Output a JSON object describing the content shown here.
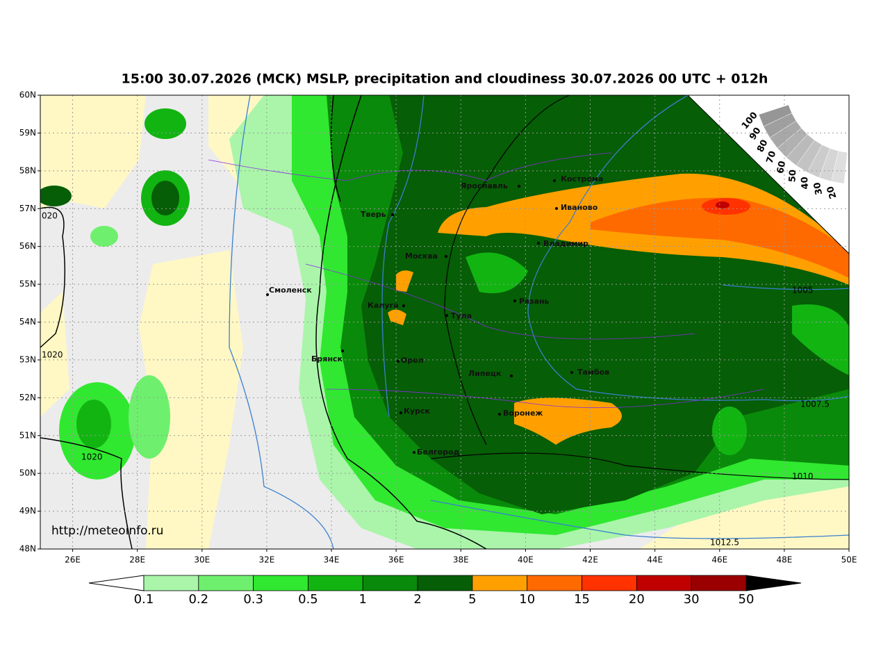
{
  "header": {
    "title": "15:00 30.07.2026 (МСК) MSLP, precipitation and cloudiness 30.07.2026 00 UTC + 012h"
  },
  "map": {
    "lat_labels": [
      "60N",
      "59N",
      "58N",
      "57N",
      "56N",
      "55N",
      "54N",
      "53N",
      "52N",
      "51N",
      "50N",
      "49N",
      "48N"
    ],
    "lon_labels": [
      "26E",
      "28E",
      "30E",
      "32E",
      "34E",
      "36E",
      "38E",
      "40E",
      "42E",
      "44E",
      "46E",
      "48E",
      "50E"
    ],
    "cities": [
      "Кострома",
      "Ярославль",
      "Иваново",
      "Тверь",
      "Владимир",
      "Москва",
      "Смоленск",
      "Рязань",
      "Калуга",
      "Тула",
      "Брянск",
      "Орел",
      "Липецк",
      "Тамбов",
      "Курск",
      "Воронеж",
      "Белгород"
    ],
    "isobar_labels": [
      "020",
      "1020",
      "1020",
      "1005",
      "1007.5",
      "1010",
      "1012.5"
    ],
    "watermark": "http://meteoinfo.ru"
  },
  "cloud_scale": {
    "labels": [
      "100",
      "90",
      "80",
      "70",
      "60",
      "50",
      "40",
      "30",
      "20"
    ]
  },
  "colorbar": {
    "labels": [
      "0.1",
      "0.2",
      "0.3",
      "0.5",
      "1",
      "2",
      "5",
      "10",
      "15",
      "20",
      "30",
      "50"
    ],
    "colors": [
      "#aaf5aa",
      "#6ef06e",
      "#30e830",
      "#12b412",
      "#0a8a0a",
      "#065e06",
      "#ffa000",
      "#ff6a00",
      "#ff3200",
      "#c00000",
      "#9a0000"
    ]
  }
}
